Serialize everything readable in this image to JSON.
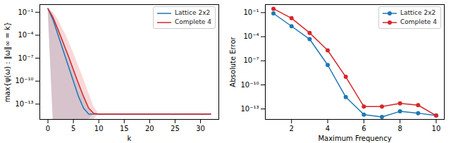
{
  "chart_data": [
    {
      "type": "line",
      "xlabel": "k",
      "ylabel": "max{ψ(ω) : ‖ω‖∞ = k}",
      "log": "y",
      "legend": "upper right",
      "x": [
        0,
        1,
        2,
        3,
        4,
        5,
        6,
        7,
        8,
        9,
        10,
        11,
        12,
        13,
        14,
        15,
        16,
        17,
        18,
        19,
        20,
        21,
        22,
        23,
        24,
        25,
        26,
        27,
        28,
        29,
        30,
        31,
        32
      ],
      "xlim": [
        -1.6,
        33.6
      ],
      "xticks": [
        0,
        5,
        10,
        15,
        20,
        25,
        30
      ],
      "ylim": [
        1e-15,
        1
      ],
      "yticks": [
        {
          "value": 0.1,
          "label": "10⁻¹"
        },
        {
          "value": 0.0001,
          "label": "10⁻⁴"
        },
        {
          "value": 1e-07,
          "label": "10⁻⁷"
        },
        {
          "value": 1e-10,
          "label": "10⁻¹⁰"
        },
        {
          "value": 1e-13,
          "label": "10⁻¹³"
        }
      ],
      "series": [
        {
          "name": "Lattice 2x2",
          "color": "#1f77b4",
          "values": [
            0.3,
            0.01,
            0.0001,
            1e-06,
            1e-08,
            1e-10,
            1e-12,
            3e-14,
            5e-15,
            5e-15,
            5e-15,
            5e-15,
            5e-15,
            5e-15,
            5e-15,
            5e-15,
            5e-15,
            5e-15,
            5e-15,
            5e-15,
            5e-15,
            5e-15,
            5e-15,
            5e-15,
            5e-15,
            5e-15,
            5e-15,
            5e-15,
            5e-15,
            5e-15,
            5e-15,
            5e-15,
            5e-15
          ],
          "band_low": [
            0.3,
            1e-15,
            1e-15,
            1e-15,
            1e-15,
            1e-15,
            1e-15,
            1e-15,
            1e-15,
            5e-15,
            5e-15,
            5e-15,
            5e-15,
            5e-15,
            5e-15,
            5e-15,
            5e-15,
            5e-15,
            5e-15,
            5e-15,
            5e-15,
            5e-15,
            5e-15,
            5e-15,
            5e-15,
            5e-15,
            5e-15,
            5e-15,
            5e-15,
            5e-15,
            5e-15,
            5e-15,
            5e-15
          ],
          "band_high": [
            0.3,
            0.05,
            0.001,
            2e-05,
            3e-07,
            5e-09,
            8e-11,
            1e-12,
            3e-14,
            5e-15,
            5e-15,
            5e-15,
            5e-15,
            5e-15,
            5e-15,
            5e-15,
            5e-15,
            5e-15,
            5e-15,
            5e-15,
            5e-15,
            5e-15,
            5e-15,
            5e-15,
            5e-15,
            5e-15,
            5e-15,
            5e-15,
            5e-15,
            5e-15,
            5e-15,
            5e-15,
            5e-15
          ]
        },
        {
          "name": "Complete 4",
          "color": "#d62728",
          "values": [
            0.3,
            0.02,
            0.0005,
            1e-05,
            2e-07,
            3e-09,
            5e-11,
            1e-12,
            3e-14,
            6e-15,
            5e-15,
            5e-15,
            5e-15,
            5e-15,
            5e-15,
            5e-15,
            5e-15,
            5e-15,
            5e-15,
            5e-15,
            5e-15,
            5e-15,
            5e-15,
            5e-15,
            5e-15,
            5e-15,
            5e-15,
            5e-15,
            5e-15,
            5e-15,
            5e-15,
            5e-15,
            5e-15
          ],
          "band_low": [
            0.3,
            1e-15,
            1e-15,
            1e-15,
            1e-15,
            1e-15,
            1e-15,
            1e-15,
            1e-15,
            1e-15,
            5e-15,
            5e-15,
            5e-15,
            5e-15,
            5e-15,
            5e-15,
            5e-15,
            5e-15,
            5e-15,
            5e-15,
            5e-15,
            5e-15,
            5e-15,
            5e-15,
            5e-15,
            5e-15,
            5e-15,
            5e-15,
            5e-15,
            5e-15,
            5e-15,
            5e-15,
            5e-15
          ],
          "band_high": [
            0.3,
            0.1,
            0.01,
            0.0005,
            2e-05,
            5e-07,
            1e-08,
            2e-10,
            3e-12,
            5e-14,
            5e-15,
            5e-15,
            5e-15,
            5e-15,
            5e-15,
            5e-15,
            5e-15,
            5e-15,
            5e-15,
            5e-15,
            5e-15,
            5e-15,
            5e-15,
            5e-15,
            5e-15,
            5e-15,
            5e-15,
            5e-15,
            5e-15,
            5e-15,
            5e-15,
            5e-15,
            5e-15
          ]
        }
      ]
    },
    {
      "type": "line",
      "xlabel": "Maximum Frequency",
      "ylabel": "Absolute Error",
      "log": "y",
      "legend": "upper right",
      "marker": "circle",
      "x": [
        1,
        2,
        3,
        4,
        5,
        6,
        7,
        8,
        9,
        10
      ],
      "xlim": [
        0.55,
        10.45
      ],
      "xticks": [
        2,
        4,
        6,
        8,
        10
      ],
      "ylim": [
        5e-15,
        1
      ],
      "yticks": [
        {
          "value": 0.1,
          "label": "10⁻¹"
        },
        {
          "value": 0.0001,
          "label": "10⁻⁴"
        },
        {
          "value": 1e-07,
          "label": "10⁻⁷"
        },
        {
          "value": 1e-10,
          "label": "10⁻¹⁰"
        },
        {
          "value": 1e-13,
          "label": "10⁻¹³"
        }
      ],
      "series": [
        {
          "name": "Lattice 2x2",
          "color": "#1f77b4",
          "values": [
            0.08,
            0.002,
            5e-05,
            3e-08,
            3e-12,
            2e-14,
            1e-14,
            5e-14,
            3e-14,
            1.5e-14
          ]
        },
        {
          "name": "Complete 4",
          "color": "#d62728",
          "values": [
            0.3,
            0.02,
            0.0003,
            2e-06,
            1e-09,
            2e-13,
            2e-13,
            5e-13,
            3e-13,
            1.5e-14
          ]
        }
      ]
    }
  ]
}
